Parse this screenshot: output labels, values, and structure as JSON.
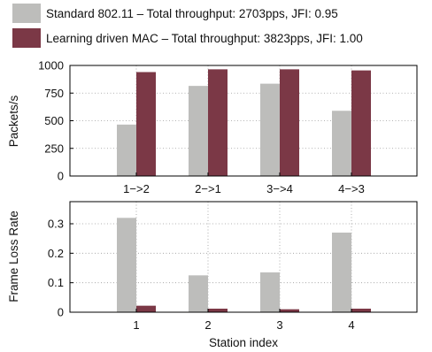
{
  "chart_data": [
    {
      "type": "bar",
      "categories": [
        "1−>2",
        "2−>1",
        "3−>4",
        "4−>3"
      ],
      "series": [
        {
          "name": "Standard 802.11 – Total throughput: 2703pps, JFI: 0.95",
          "values": [
            465,
            815,
            835,
            590
          ],
          "color": "#bdbdbb"
        },
        {
          "name": "Learning driven MAC – Total throughput: 3823pps, JFI: 1.00",
          "values": [
            940,
            965,
            965,
            955
          ],
          "color": "#7b3846"
        }
      ],
      "ylabel": "Packets/s",
      "xlabel": "",
      "ylim": [
        0,
        1000
      ],
      "yticks": [
        "0",
        "250",
        "500",
        "750",
        "1000"
      ],
      "ytick_values": [
        0,
        250,
        500,
        750,
        1000
      ],
      "grid": true,
      "legend": "top"
    },
    {
      "type": "bar",
      "categories": [
        "1",
        "2",
        "3",
        "4"
      ],
      "series": [
        {
          "name": "Standard 802.11",
          "values": [
            0.32,
            0.125,
            0.135,
            0.27
          ],
          "color": "#bdbdbb"
        },
        {
          "name": "Learning driven MAC",
          "values": [
            0.022,
            0.012,
            0.01,
            0.012
          ],
          "color": "#7b3846"
        }
      ],
      "ylabel": "Frame Loss Rate",
      "xlabel": "Station index",
      "ylim": [
        0,
        0.375
      ],
      "yticks": [
        "0",
        "0.1",
        "0.2",
        "0.3"
      ],
      "ytick_values": [
        0,
        0.1,
        0.2,
        0.3
      ],
      "grid": true
    }
  ]
}
